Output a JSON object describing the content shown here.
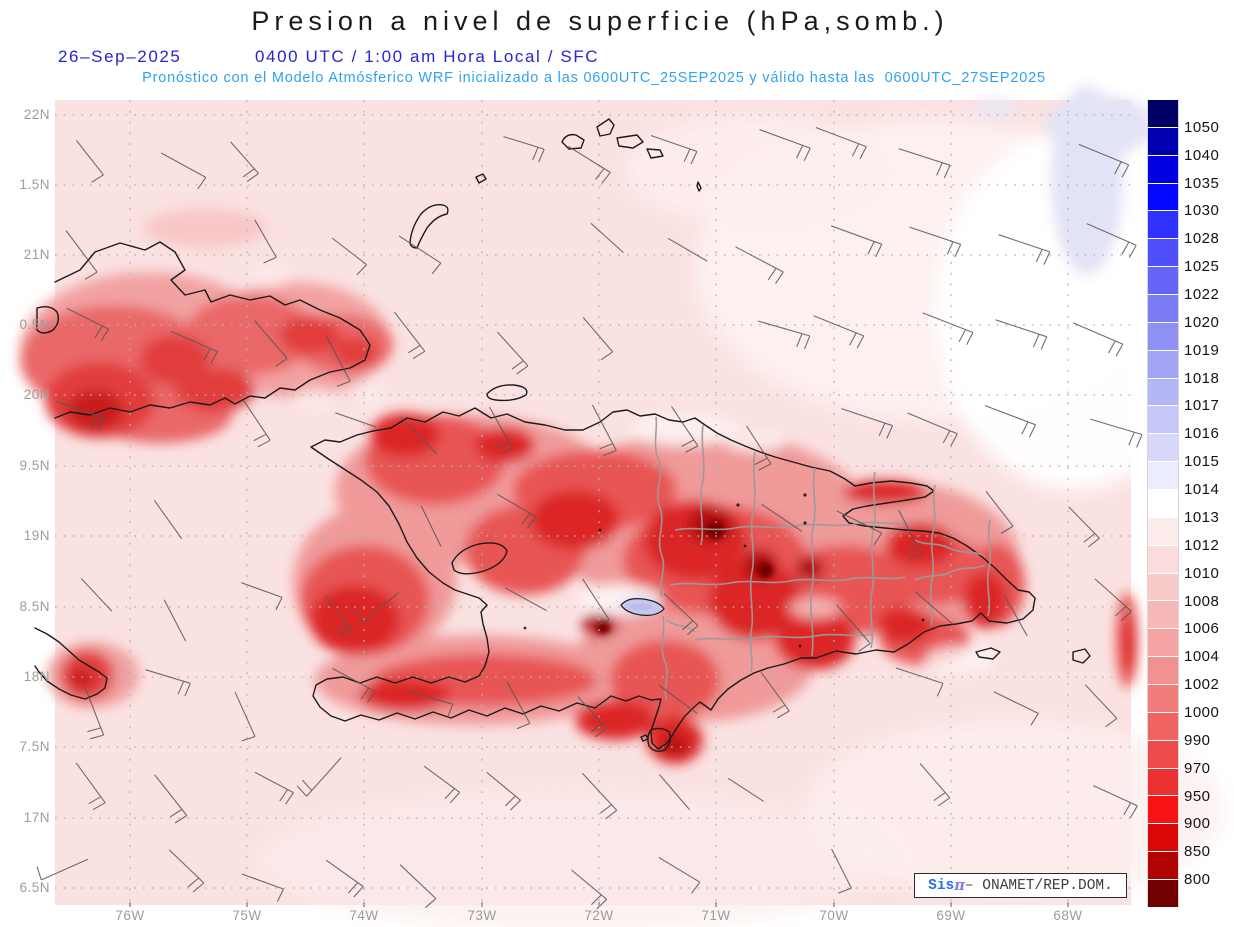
{
  "title": "Presion a nivel de superficie (hPa,somb.)",
  "header": {
    "date": "26–Sep–2025",
    "time": "0400 UTC / 1:00 am Hora Local / SFC",
    "forecast": "Pronóstico con el Modelo Atmósferico WRF inicializado a las 0600UTC_25SEP2025 y válido hasta las  0600UTC_27SEP2025"
  },
  "axes": {
    "lat": {
      "labels": [
        "22N",
        "1.5N",
        "21N",
        "0.5N",
        "20N",
        "9.5N",
        "19N",
        "8.5N",
        "18N",
        "7.5N",
        "17N",
        "6.5N"
      ],
      "y": [
        115,
        185,
        255,
        325,
        395,
        466,
        536,
        607,
        677,
        747,
        818,
        888
      ]
    },
    "lon": {
      "labels": [
        "76W",
        "75W",
        "74W",
        "73W",
        "72W",
        "71W",
        "70W",
        "69W",
        "68W"
      ],
      "x": [
        130,
        247,
        364,
        482,
        599,
        716,
        834,
        951,
        1068
      ]
    }
  },
  "colorbar": {
    "unit": "hPa",
    "labels": [
      "1050",
      "1040",
      "1035",
      "1030",
      "1028",
      "1025",
      "1022",
      "1020",
      "1019",
      "1018",
      "1017",
      "1016",
      "1015",
      "1014",
      "1013",
      "1012",
      "1010",
      "1008",
      "1006",
      "1004",
      "1002",
      "1000",
      "990",
      "970",
      "950",
      "900",
      "850",
      "800"
    ],
    "colors": [
      "#000066",
      "#0000b0",
      "#0000e0",
      "#0508ff",
      "#3032ff",
      "#4f50fb",
      "#6566f8",
      "#7b7cf5",
      "#8f90f3",
      "#a2a3f3",
      "#b4b5f5",
      "#c6c7f8",
      "#d8d9fa",
      "#ebecfd",
      "#ffffff",
      "#fcebeb",
      "#fbdcdc",
      "#f9caca",
      "#f7b8b8",
      "#f5a4a4",
      "#f39090",
      "#f17b7b",
      "#ef6363",
      "#ed4a4a",
      "#ea3030",
      "#f81414",
      "#d90707",
      "#b10303",
      "#730000"
    ]
  },
  "map_style": {
    "sea": "#fbe2e2",
    "grid": "#b3b3b3",
    "coast": "#1b1b1b",
    "province": "#9b9b9b",
    "barb": "#565656",
    "lake_fill": "#c7c7ed"
  },
  "watermark": {
    "prefix": "Sis",
    "pi": "π",
    "separator": "– ",
    "org": "ONAMET/REP.DOM."
  }
}
